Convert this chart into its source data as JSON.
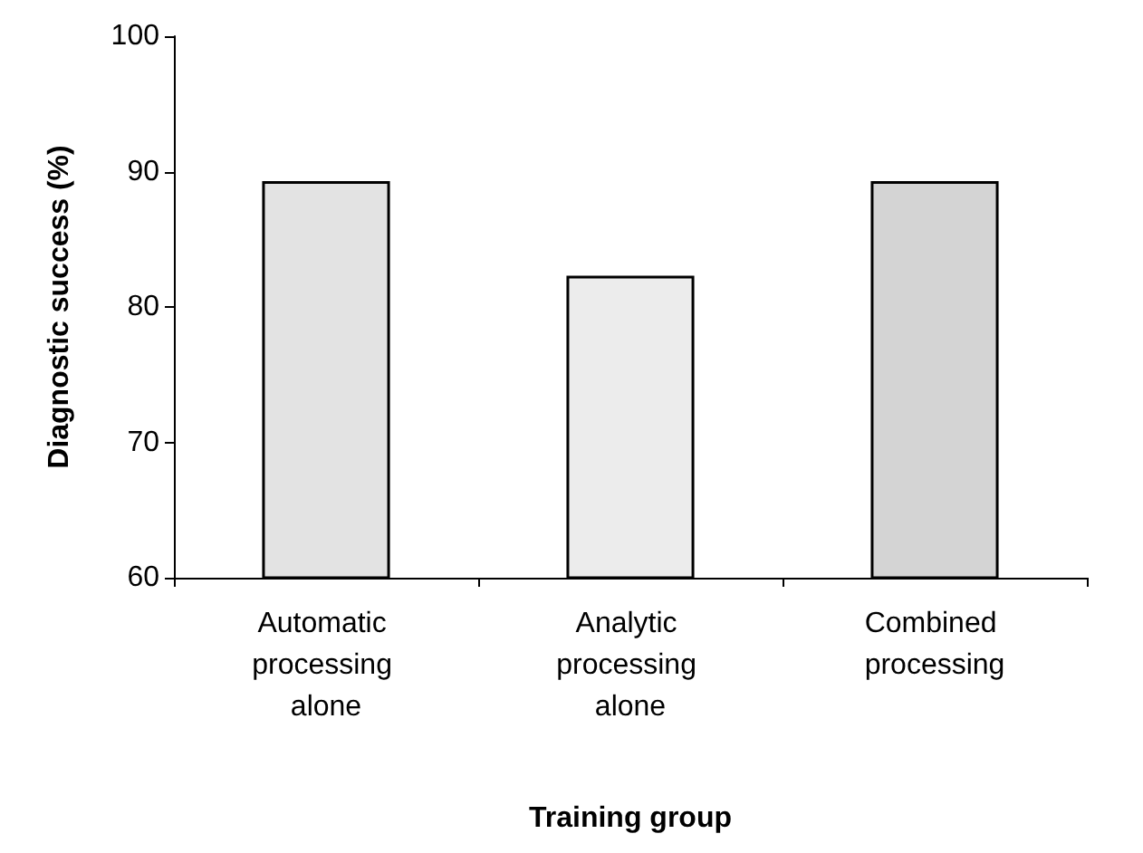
{
  "chart_data": {
    "type": "bar",
    "xlabel": "Training group",
    "ylabel": "Diagnostic success (%)",
    "categories": [
      "Automatic processing alone",
      "Analytic processing alone",
      "Combined processing"
    ],
    "values": [
      89.3,
      82.3,
      89.3
    ],
    "colors": [
      "#e3e3e3",
      "#ececec",
      "#d4d4d4"
    ],
    "ylim": [
      60,
      100
    ],
    "yticks": [
      60,
      70,
      80,
      90,
      100
    ],
    "grid": false
  }
}
